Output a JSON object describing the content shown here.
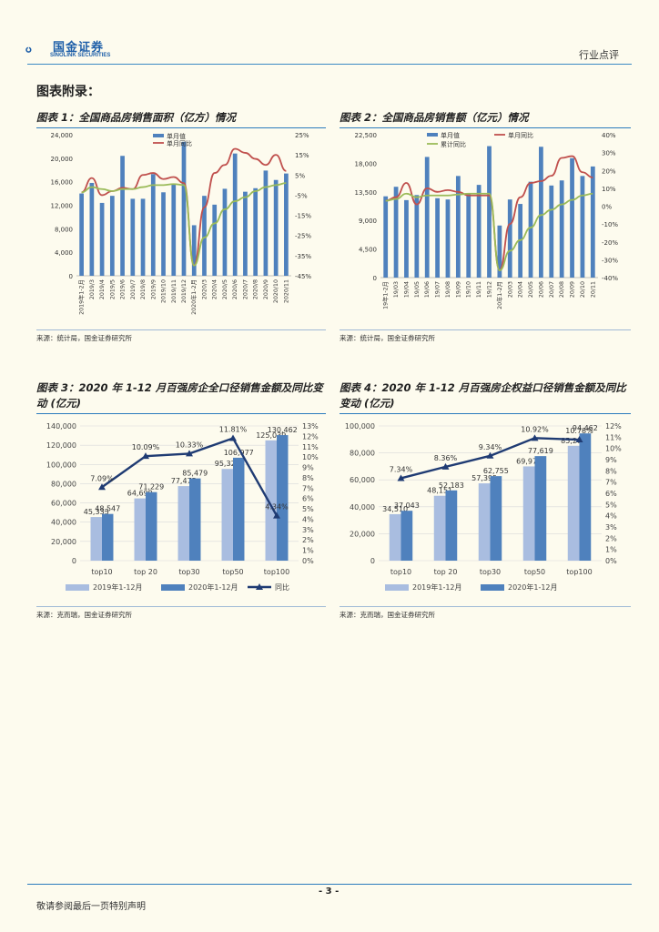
{
  "header": {
    "logo_cn": "国金证券",
    "logo_en": "SINOLINK SECURITIES",
    "right_text": "行业点评"
  },
  "appendix_title": "图表附录：",
  "figures": [
    {
      "title": "图表 1：全国商品房销售面积（亿方）情况",
      "source": "来源：统计局，国金证券研究所"
    },
    {
      "title": "图表 2：全国商品房销售额（亿元）情况",
      "source": "来源：统计局，国金证券研究所"
    },
    {
      "title": "图表 3：2020 年 1-12 月百强房企全口径销售金额及同比变动 (亿元)",
      "source": "来源：克而瑞，国金证券研究所"
    },
    {
      "title": "图表 4：2020 年 1-12 月百强房企权益口径销售金额及同比变动 (亿元)",
      "source": "来源：克而瑞，国金证券研究所"
    }
  ],
  "footer": {
    "page": "- 3 -",
    "disclaimer": "敬请参阅最后一页特别声明"
  },
  "colors": {
    "bar": "#4f81bd",
    "bar_light": "#a9bde0",
    "line_red": "#c0504d",
    "line_green": "#9bbb59",
    "navy": "#1f3b73",
    "rule": "#2b7bbd"
  },
  "chart_data": [
    {
      "type": "bar",
      "categories": [
        "2019年1-2月",
        "2019/3",
        "2019/4",
        "2019/5",
        "2019/6",
        "2019/7",
        "2019/8",
        "2019/9",
        "2019/10",
        "2019/11",
        "2019/12",
        "2020年1-2月",
        "2020/3",
        "2020/4",
        "2020/5",
        "2020/6",
        "2020/7",
        "2020/8",
        "2020/9",
        "2020/10",
        "2020/11"
      ],
      "series": [
        {
          "name": "单月值",
          "axis": "left",
          "kind": "bar",
          "values": [
            14000,
            15800,
            12400,
            13600,
            20400,
            13100,
            13100,
            17300,
            14200,
            15500,
            22800,
            8600,
            13600,
            12100,
            14800,
            20800,
            14300,
            14900,
            17900,
            16300,
            17400
          ]
        },
        {
          "name": "单月同比",
          "axis": "right",
          "kind": "line",
          "values": [
            -3.6,
            3.5,
            -5,
            -3,
            -1.4,
            -2,
            5,
            6,
            3,
            4,
            1,
            -39.9,
            -11,
            6,
            10,
            18,
            16,
            13,
            10,
            15,
            7
          ]
        },
        {
          "name": "",
          "axis": "right",
          "kind": "line",
          "values": [
            -3.6,
            -1,
            -2,
            -3,
            -2,
            -2,
            -1,
            0,
            0,
            0.5,
            0,
            -39.9,
            -26,
            -19,
            -12,
            -8,
            -6,
            -3,
            -1,
            0,
            1
          ]
        }
      ],
      "ylim": [
        0,
        24000
      ],
      "y_ticks": [
        "24,000",
        "20,000",
        "16,000",
        "12,000",
        "8,000",
        "4,000",
        "0"
      ],
      "y2lim": [
        -45,
        25
      ],
      "y2_ticks": [
        "25%",
        "15%",
        "5%",
        "-5%",
        "-15%",
        "-25%",
        "-35%",
        "-45%"
      ]
    },
    {
      "type": "bar",
      "categories": [
        "19年1-2月",
        "19/03",
        "19/04",
        "19/05",
        "19/06",
        "19/07",
        "19/08",
        "19/09",
        "19/10",
        "19/11",
        "19/12",
        "20年1-2月",
        "20/03",
        "20/04",
        "20/05",
        "20/06",
        "20/07",
        "20/08",
        "20/09",
        "20/10",
        "20/11"
      ],
      "series": [
        {
          "name": "单月值",
          "axis": "left",
          "kind": "bar",
          "values": [
            12800,
            14300,
            12200,
            13000,
            19000,
            12500,
            12300,
            16000,
            13300,
            14600,
            20700,
            8200,
            12300,
            11600,
            15100,
            20600,
            14500,
            15300,
            18800,
            16000,
            17500
          ]
        },
        {
          "name": "单月同比",
          "axis": "right",
          "kind": "line",
          "values": [
            3,
            5,
            13,
            1,
            10,
            8,
            9,
            8,
            6,
            6,
            6,
            -36,
            -10,
            5,
            13,
            14,
            17,
            27,
            28,
            19,
            16
          ]
        },
        {
          "name": "累计同比",
          "axis": "right",
          "kind": "line",
          "values": [
            3,
            4,
            7,
            5,
            6,
            6,
            6,
            6.5,
            7,
            7,
            7,
            -36,
            -25,
            -19,
            -12,
            -5,
            -2,
            1,
            3.5,
            6,
            7
          ]
        }
      ],
      "ylim": [
        0,
        22500
      ],
      "y_ticks": [
        "22,500",
        "18,000",
        "13,500",
        "9,000",
        "4,500",
        "0"
      ],
      "y2lim": [
        -40,
        40
      ],
      "y2_ticks": [
        "40%",
        "30%",
        "20%",
        "10%",
        "0%",
        "-10%",
        "-20%",
        "-30%",
        "-40%"
      ]
    },
    {
      "type": "bar",
      "categories": [
        "top10",
        "top 20",
        "top30",
        "top50",
        "top100"
      ],
      "series": [
        {
          "name": "2019年1-12月",
          "axis": "left",
          "kind": "bar",
          "values": [
            45333,
            64699,
            77475,
            95322,
            125039
          ],
          "labels": [
            "45,333",
            "64,699",
            "77,475",
            "95,322",
            "125,039"
          ]
        },
        {
          "name": "2020年1-12月",
          "axis": "left",
          "kind": "bar",
          "values": [
            48547,
            71229,
            85479,
            106977,
            130462
          ],
          "labels": [
            "48,547",
            "71,229",
            "85,479",
            "106,977",
            "130,462"
          ]
        },
        {
          "name": "同比",
          "axis": "right",
          "kind": "line",
          "values": [
            7.09,
            10.09,
            10.33,
            11.81,
            4.34
          ],
          "labels": [
            "7.09%",
            "10.09%",
            "10.33%",
            "11.81%",
            "4.34%"
          ]
        }
      ],
      "ylim": [
        0,
        140000
      ],
      "y_ticks": [
        "140,000",
        "120,000",
        "100,000",
        "80,000",
        "60,000",
        "40,000",
        "20,000",
        "0"
      ],
      "y2lim": [
        0,
        13
      ],
      "y2_ticks": [
        "13%",
        "12%",
        "11%",
        "10%",
        "9%",
        "8%",
        "7%",
        "6%",
        "5%",
        "4%",
        "3%",
        "2%",
        "1%",
        "0%"
      ]
    },
    {
      "type": "bar",
      "categories": [
        "top10",
        "top 20",
        "top30",
        "top50",
        "top100"
      ],
      "series": [
        {
          "name": "2019年1-12月",
          "axis": "left",
          "kind": "bar",
          "values": [
            34510,
            48151,
            57395,
            69970,
            85269
          ],
          "labels": [
            "34,510",
            "48,151",
            "57,395",
            "69,970",
            "85,269"
          ]
        },
        {
          "name": "2020年1-12月",
          "axis": "left",
          "kind": "bar",
          "values": [
            37043,
            52183,
            62755,
            77619,
            94462
          ],
          "labels": [
            "37,043",
            "52,183",
            "62,755",
            "77,619",
            "94,462"
          ]
        },
        {
          "name": "",
          "axis": "right",
          "kind": "line",
          "values": [
            7.34,
            8.36,
            9.34,
            10.92,
            10.78
          ],
          "labels": [
            "7.34%",
            "8.36%",
            "9.34%",
            "10.92%",
            "10.78%"
          ]
        }
      ],
      "ylim": [
        0,
        100000
      ],
      "y_ticks": [
        "100,000",
        "80,000",
        "60,000",
        "40,000",
        "20,000",
        "0"
      ],
      "y2lim": [
        0,
        12
      ],
      "y2_ticks": [
        "12%",
        "11%",
        "10%",
        "9%",
        "8%",
        "7%",
        "6%",
        "5%",
        "4%",
        "3%",
        "2%",
        "1%",
        "0%"
      ]
    }
  ]
}
